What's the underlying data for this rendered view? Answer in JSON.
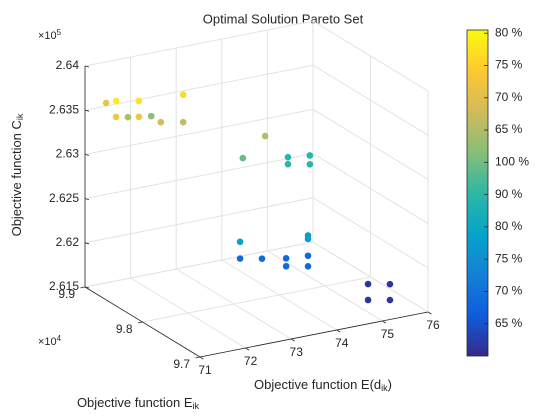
{
  "chart_data": {
    "type": "scatter3d",
    "title": "Optimal Solution Pareto Set",
    "xlabel": [
      "Objective function E(d",
      "ik",
      ")"
    ],
    "ylabel": [
      "Objective function E",
      "ik"
    ],
    "zlabel": [
      "Objective function C",
      "ik"
    ],
    "y_exponent": [
      "×10",
      "4"
    ],
    "z_exponent": [
      "×10",
      "5"
    ],
    "x": [
      75.19,
      75.67,
      75.19,
      75.67,
      73.14,
      73.62,
      74.15,
      74.15,
      74.63,
      74.63,
      73.14,
      74.63,
      74.63,
      74.19,
      74.19,
      74.67,
      74.67,
      73.2,
      73.69,
      71.21,
      71.43,
      71.93,
      72.9,
      71.43,
      71.69,
      71.93,
      72.2,
      72.41,
      72.9
    ],
    "y": [
      9.74,
      9.74,
      9.74,
      9.74,
      9.8,
      9.8,
      9.8,
      9.8,
      9.8,
      9.8,
      9.8,
      9.8,
      9.8,
      9.8,
      9.8,
      9.8,
      9.8,
      9.8,
      9.8,
      9.88,
      9.88,
      9.88,
      9.88,
      9.88,
      9.88,
      9.88,
      9.88,
      9.88,
      9.88
    ],
    "z": [
      2.6174,
      2.6169,
      2.6156,
      2.6151,
      2.62,
      2.6195,
      2.619,
      2.6181,
      2.6188,
      2.6176,
      2.6219,
      2.6211,
      2.6207,
      2.6304,
      2.6296,
      2.6301,
      2.6291,
      2.6313,
      2.6333,
      2.6364,
      2.6364,
      2.6359,
      2.6356,
      2.6346,
      2.6343,
      2.6341,
      2.6339,
      2.633,
      2.6325
    ],
    "c": [
      0.3,
      0.3,
      0.3,
      0.3,
      1.7,
      1.7,
      1.7,
      1.7,
      1.7,
      1.7,
      3.8,
      3.5,
      3.5,
      4.9,
      4.9,
      4.9,
      4.9,
      5.9,
      7.1,
      8.4,
      9.7,
      9.5,
      9.3,
      8.5,
      7.0,
      8.6,
      6.4,
      7.6,
      7.3
    ],
    "xlim": [
      71,
      76
    ],
    "ylim": [
      9.7,
      9.9
    ],
    "zlim": [
      2.615,
      2.64
    ],
    "xticks": [
      71,
      72,
      73,
      74,
      75,
      76
    ],
    "yticks": [
      9.7,
      9.8,
      9.9
    ],
    "zticks": [
      2.615,
      2.62,
      2.625,
      2.63,
      2.635,
      2.64
    ],
    "grid": true,
    "colormap": "parula",
    "clim": [
      0,
      10.1
    ],
    "cticks": [
      {
        "value": 1,
        "label": "65 %"
      },
      {
        "value": 2,
        "label": "70 %"
      },
      {
        "value": 3,
        "label": "75 %"
      },
      {
        "value": 4,
        "label": "80 %"
      },
      {
        "value": 5,
        "label": "90 %"
      },
      {
        "value": 6,
        "label": "100 %"
      },
      {
        "value": 7,
        "label": "65 %"
      },
      {
        "value": 8,
        "label": "70 %"
      },
      {
        "value": 9,
        "label": "75 %"
      },
      {
        "value": 10,
        "label": "80 %"
      }
    ]
  }
}
